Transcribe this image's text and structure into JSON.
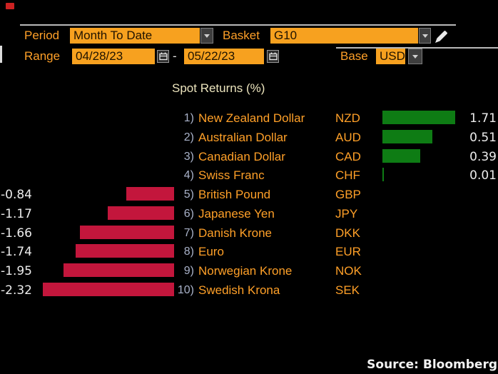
{
  "header": {
    "period_label": "Period",
    "period_value": "Month To Date",
    "basket_label": "Basket",
    "basket_value": "G10",
    "range_label": "Range",
    "range_start": "04/28/23",
    "range_separator": "-",
    "range_end": "05/22/23",
    "base_label": "Base",
    "base_value": "USD"
  },
  "chart_data": {
    "type": "bar",
    "orientation": "horizontal",
    "title": "Spot Returns (%)",
    "categories": [
      "New Zealand Dollar",
      "Australian Dollar",
      "Canadian Dollar",
      "Swiss Franc",
      "British Pound",
      "Japanese Yen",
      "Danish Krone",
      "Euro",
      "Norwegian Krone",
      "Swedish Krona"
    ],
    "values": [
      1.71,
      0.51,
      0.39,
      0.01,
      -0.84,
      -1.17,
      -1.66,
      -1.74,
      -1.95,
      -2.32
    ],
    "rows": [
      {
        "rank": "1)",
        "name": "New Zealand Dollar",
        "code": "NZD",
        "value": 1.71
      },
      {
        "rank": "2)",
        "name": "Australian Dollar",
        "code": "AUD",
        "value": 0.51
      },
      {
        "rank": "3)",
        "name": "Canadian Dollar",
        "code": "CAD",
        "value": 0.39
      },
      {
        "rank": "4)",
        "name": "Swiss Franc",
        "code": "CHF",
        "value": 0.01
      },
      {
        "rank": "5)",
        "name": "British Pound",
        "code": "GBP",
        "value": -0.84
      },
      {
        "rank": "6)",
        "name": "Japanese Yen",
        "code": "JPY",
        "value": -1.17
      },
      {
        "rank": "7)",
        "name": "Danish Krone",
        "code": "DKK",
        "value": -1.66
      },
      {
        "rank": "8)",
        "name": "Euro",
        "code": "EUR",
        "value": -1.74
      },
      {
        "rank": "9)",
        "name": "Norwegian Krone",
        "code": "NOK",
        "value": -1.95
      },
      {
        "rank": "10)",
        "name": "Swedish Krona",
        "code": "SEK",
        "value": -2.32
      }
    ],
    "positive_color": "#0e7c14",
    "negative_color": "#c3163c",
    "legend": "none",
    "grid": false
  },
  "footer": {
    "source": "Source: Bloomberg"
  },
  "colors": {
    "background": "#000000",
    "accent_amber_field": "#f7a11f",
    "accent_orange_text": "#ffa028",
    "title_text": "#ece4bd",
    "rank_text": "#a9b2c9",
    "value_text": "#ececec",
    "positive_bar": "#0e7c14",
    "negative_bar": "#c3163c"
  }
}
